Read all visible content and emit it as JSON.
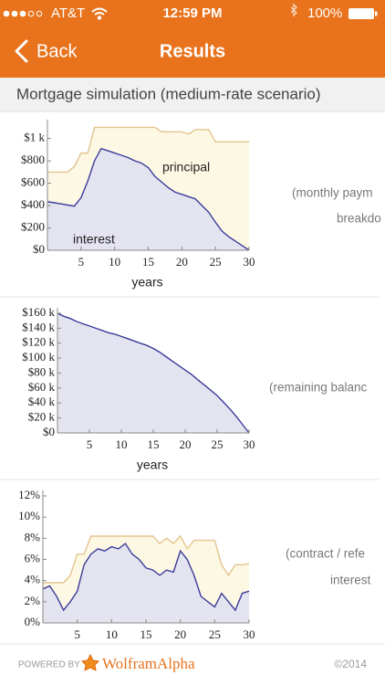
{
  "status_bar": {
    "carrier": "AT&T",
    "time": "12:59 PM",
    "battery": "100%"
  },
  "nav": {
    "back": "Back",
    "title": "Results"
  },
  "header": {
    "title": "Mortgage simulation (medium-rate scenario)"
  },
  "chart_data": [
    {
      "type": "stacked_area",
      "stacked": true,
      "x_label": "years",
      "caption": [
        "(monthly paym",
        "breakdo"
      ],
      "x": [
        0,
        1,
        2,
        3,
        4,
        5,
        6,
        7,
        8,
        9,
        10,
        11,
        12,
        13,
        14,
        15,
        16,
        17,
        18,
        19,
        20,
        21,
        22,
        23,
        24,
        25,
        26,
        27,
        28,
        29,
        30
      ],
      "series": [
        {
          "name": "interest",
          "color": "#3b3b9a",
          "fill": "#e4e4f1",
          "values": [
            435,
            425,
            415,
            405,
            395,
            470,
            620,
            800,
            910,
            890,
            870,
            850,
            830,
            800,
            780,
            740,
            660,
            610,
            560,
            520,
            500,
            480,
            460,
            400,
            340,
            250,
            170,
            120,
            80,
            40,
            0
          ]
        },
        {
          "name": "principal",
          "color": "#e3c48e",
          "fill": "#fdf8e4",
          "values": [
            265,
            275,
            285,
            295,
            355,
            400,
            250,
            300,
            190,
            210,
            230,
            250,
            270,
            300,
            320,
            360,
            440,
            450,
            500,
            540,
            560,
            560,
            620,
            680,
            740,
            720,
            800,
            850,
            890,
            930,
            970
          ]
        }
      ],
      "xlim": [
        0,
        30
      ],
      "xticks": [
        5,
        10,
        15,
        20,
        25,
        30
      ],
      "ylim": [
        0,
        1120
      ],
      "yticks": [
        {
          "value": 0,
          "label": "$0"
        },
        {
          "value": 200,
          "label": "$200"
        },
        {
          "value": 400,
          "label": "$400"
        },
        {
          "value": 600,
          "label": "$600"
        },
        {
          "value": 800,
          "label": "$800"
        },
        {
          "value": 1000,
          "label": "$1 k"
        }
      ]
    },
    {
      "type": "area",
      "stacked": false,
      "x_label": "years",
      "caption": [
        "(remaining balanc"
      ],
      "x": [
        0,
        1,
        2,
        3,
        4,
        5,
        6,
        7,
        8,
        9,
        10,
        11,
        12,
        13,
        14,
        15,
        16,
        17,
        18,
        19,
        20,
        21,
        22,
        23,
        24,
        25,
        26,
        27,
        28,
        29,
        30
      ],
      "series": [
        {
          "color": "#3b3b9a",
          "fill": "#e4e4f1",
          "values": [
            160000,
            156000,
            153000,
            149000,
            146000,
            143000,
            140000,
            137000,
            134000,
            132000,
            129000,
            126000,
            123000,
            120000,
            117000,
            113000,
            108000,
            102000,
            96000,
            90000,
            84000,
            78000,
            71000,
            64000,
            57000,
            50000,
            41000,
            32000,
            22000,
            11000,
            0
          ]
        }
      ],
      "xlim": [
        0,
        30
      ],
      "xticks": [
        5,
        10,
        15,
        20,
        25,
        30
      ],
      "ylim": [
        0,
        160000
      ],
      "yticks": [
        {
          "value": 0,
          "label": "$0"
        },
        {
          "value": 20000,
          "label": "$20 k"
        },
        {
          "value": 40000,
          "label": "$40 k"
        },
        {
          "value": 60000,
          "label": "$60 k"
        },
        {
          "value": 80000,
          "label": "$80 k"
        },
        {
          "value": 100000,
          "label": "$100 k"
        },
        {
          "value": 120000,
          "label": "$120 k"
        },
        {
          "value": 140000,
          "label": "$140 k"
        },
        {
          "value": 160000,
          "label": "$160 k"
        }
      ]
    },
    {
      "type": "area",
      "stacked": false,
      "caption": [
        "(contract / refe",
        "interest"
      ],
      "x": [
        0,
        1,
        2,
        3,
        4,
        5,
        6,
        7,
        8,
        9,
        10,
        11,
        12,
        13,
        14,
        15,
        16,
        17,
        18,
        19,
        20,
        21,
        22,
        23,
        24,
        25,
        26,
        27,
        28,
        29,
        30
      ],
      "series": [
        {
          "color": "#e3c48e",
          "fill": "#fdf8e4",
          "values": [
            3.8,
            3.8,
            3.8,
            3.8,
            4.5,
            6.5,
            6.5,
            8.2,
            8.2,
            8.2,
            8.2,
            8.2,
            8.2,
            8.2,
            8.2,
            8.2,
            8.2,
            7.5,
            8.0,
            7.5,
            8.2,
            7.0,
            7.8,
            7.8,
            7.8,
            7.8,
            5.5,
            4.5,
            5.5,
            5.5,
            5.6
          ]
        },
        {
          "color": "#3b3b9a",
          "fill": "#e4e4f1",
          "values": [
            3.2,
            3.5,
            2.5,
            1.2,
            2.0,
            3.0,
            5.5,
            6.5,
            7.0,
            6.8,
            7.2,
            7.0,
            7.5,
            6.5,
            6.0,
            5.2,
            5.0,
            4.5,
            5.0,
            4.8,
            6.8,
            6.0,
            4.5,
            2.5,
            2.0,
            1.5,
            2.8,
            2.0,
            1.2,
            2.8,
            3.0
          ]
        }
      ],
      "xlim": [
        0,
        30
      ],
      "xticks": [
        5,
        10,
        15,
        20,
        25,
        30
      ],
      "ylim": [
        0,
        12
      ],
      "yticks": [
        {
          "value": 0,
          "label": "0%"
        },
        {
          "value": 2,
          "label": "2%"
        },
        {
          "value": 4,
          "label": "4%"
        },
        {
          "value": 6,
          "label": "6%"
        },
        {
          "value": 8,
          "label": "8%"
        },
        {
          "value": 10,
          "label": "10%"
        },
        {
          "value": 12,
          "label": "12%"
        }
      ]
    }
  ],
  "footer": {
    "powered": "POWERED BY",
    "brand": "WolframAlpha",
    "copyright": "©2014"
  }
}
